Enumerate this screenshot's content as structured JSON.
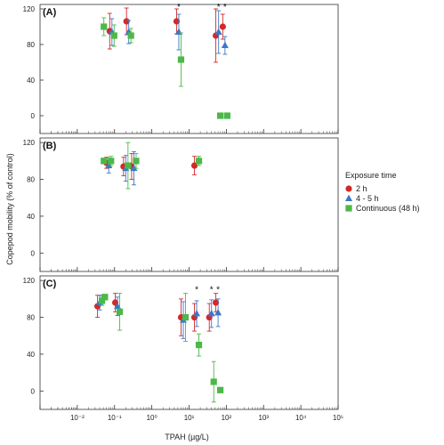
{
  "chart_data": {
    "type": "scatter",
    "xlabel": "TPAH (µg/L)",
    "ylabel": "Copepod mobility (% of control)",
    "x_scale": "log",
    "xlim": [
      0.001,
      100000
    ],
    "x_ticks": [
      {
        "value": 0.01,
        "label": "10⁻²"
      },
      {
        "value": 0.1,
        "label": "10⁻¹"
      },
      {
        "value": 1,
        "label": "10⁰"
      },
      {
        "value": 10,
        "label": "10¹"
      },
      {
        "value": 100,
        "label": "10²"
      },
      {
        "value": 1000,
        "label": "10³"
      },
      {
        "value": 10000,
        "label": "10⁴"
      },
      {
        "value": 100000,
        "label": "10⁵"
      }
    ],
    "ylim": [
      -20,
      125
    ],
    "y_ticks": [
      0,
      40,
      80,
      120
    ],
    "y_tick_labels": [
      "0",
      "40",
      "80",
      "120"
    ],
    "legend": {
      "title": "Exposure time",
      "placement": "right",
      "entries": [
        {
          "label": "2 h",
          "color": "#d62728",
          "marker": "circle"
        },
        {
          "label": "4 - 5 h",
          "color": "#3a78c8",
          "marker": "triangle"
        },
        {
          "label": "Continuous (48 h)",
          "color": "#4cb848",
          "marker": "square"
        }
      ]
    },
    "panels": [
      {
        "label": "(A)",
        "series": [
          {
            "name": "2 h",
            "points": [
              {
                "x": 0.085,
                "y": 95,
                "err": 20
              },
              {
                "x": 0.24,
                "y": 106,
                "err": 15
              },
              {
                "x": 5.3,
                "y": 106,
                "err": 14
              },
              {
                "x": 60,
                "y": 90,
                "err": 30
              },
              {
                "x": 92,
                "y": 100,
                "err": 14
              }
            ]
          },
          {
            "name": "4 - 5 h",
            "points": [
              {
                "x": 0.085,
                "y": 94,
                "err": 15
              },
              {
                "x": 0.24,
                "y": 94,
                "err": 13
              },
              {
                "x": 5.3,
                "y": 94,
                "err": 20
              },
              {
                "x": 62,
                "y": 94,
                "err": 24
              },
              {
                "x": 92,
                "y": 79,
                "err": 10
              }
            ]
          },
          {
            "name": "Continuous (48 h)",
            "points": [
              {
                "x": 0.045,
                "y": 100,
                "err": 10
              },
              {
                "x": 0.085,
                "y": 90,
                "err": 12
              },
              {
                "x": 0.24,
                "y": 90,
                "err": 8
              },
              {
                "x": 5.3,
                "y": 63,
                "err": 30
              },
              {
                "x": 60,
                "y": 0,
                "err": 0
              },
              {
                "x": 92,
                "y": 0,
                "err": 0
              }
            ]
          }
        ],
        "annotations": [
          {
            "x": 5.3,
            "y": 122,
            "text": "*"
          },
          {
            "x": 62,
            "y": 122,
            "text": "*"
          },
          {
            "x": 92,
            "y": 122,
            "text": "*"
          }
        ]
      },
      {
        "label": "(B)",
        "series": [
          {
            "name": "2 h",
            "points": [
              {
                "x": 0.07,
                "y": 98,
                "err": 6
              },
              {
                "x": 0.2,
                "y": 94,
                "err": 10
              },
              {
                "x": 0.33,
                "y": 94,
                "err": 14
              },
              {
                "x": 16,
                "y": 95,
                "err": 10
              }
            ]
          },
          {
            "name": "4 - 5 h",
            "points": [
              {
                "x": 0.07,
                "y": 95,
                "err": 8
              },
              {
                "x": 0.2,
                "y": 92,
                "err": 14
              },
              {
                "x": 0.33,
                "y": 92,
                "err": 18
              }
            ]
          },
          {
            "name": "Continuous (48 h)",
            "points": [
              {
                "x": 0.045,
                "y": 100,
                "err": 3
              },
              {
                "x": 0.07,
                "y": 100,
                "err": 5
              },
              {
                "x": 0.2,
                "y": 95,
                "err": 25
              },
              {
                "x": 0.33,
                "y": 100,
                "err": 8
              },
              {
                "x": 16,
                "y": 100,
                "err": 5
              }
            ]
          }
        ],
        "annotations": []
      },
      {
        "label": "(C)",
        "series": [
          {
            "name": "2 h",
            "points": [
              {
                "x": 0.04,
                "y": 92,
                "err": 12
              },
              {
                "x": 0.12,
                "y": 96,
                "err": 10
              },
              {
                "x": 7,
                "y": 80,
                "err": 20
              },
              {
                "x": 16,
                "y": 80,
                "err": 15
              },
              {
                "x": 40,
                "y": 80,
                "err": 15
              },
              {
                "x": 60,
                "y": 96,
                "err": 10
              }
            ]
          },
          {
            "name": "4 - 5 h",
            "points": [
              {
                "x": 0.04,
                "y": 96,
                "err": 8
              },
              {
                "x": 0.12,
                "y": 92,
                "err": 10
              },
              {
                "x": 7,
                "y": 77,
                "err": 20
              },
              {
                "x": 16,
                "y": 84,
                "err": 14
              },
              {
                "x": 40,
                "y": 84,
                "err": 15
              },
              {
                "x": 60,
                "y": 85,
                "err": 15
              }
            ]
          },
          {
            "name": "Continuous (48 h)",
            "points": [
              {
                "x": 0.04,
                "y": 98,
                "err": 5
              },
              {
                "x": 0.048,
                "y": 102,
                "err": 3
              },
              {
                "x": 0.12,
                "y": 86,
                "err": 20
              },
              {
                "x": 7,
                "y": 80,
                "err": 26
              },
              {
                "x": 16,
                "y": 50,
                "err": 12
              },
              {
                "x": 40,
                "y": 10,
                "err": 22
              },
              {
                "x": 60,
                "y": 1,
                "err": 0
              }
            ]
          }
        ],
        "annotations": [
          {
            "x": 16,
            "y": 110,
            "text": "*"
          },
          {
            "x": 40,
            "y": 110,
            "text": "*"
          },
          {
            "x": 60,
            "y": 110,
            "text": "*"
          }
        ]
      }
    ]
  }
}
